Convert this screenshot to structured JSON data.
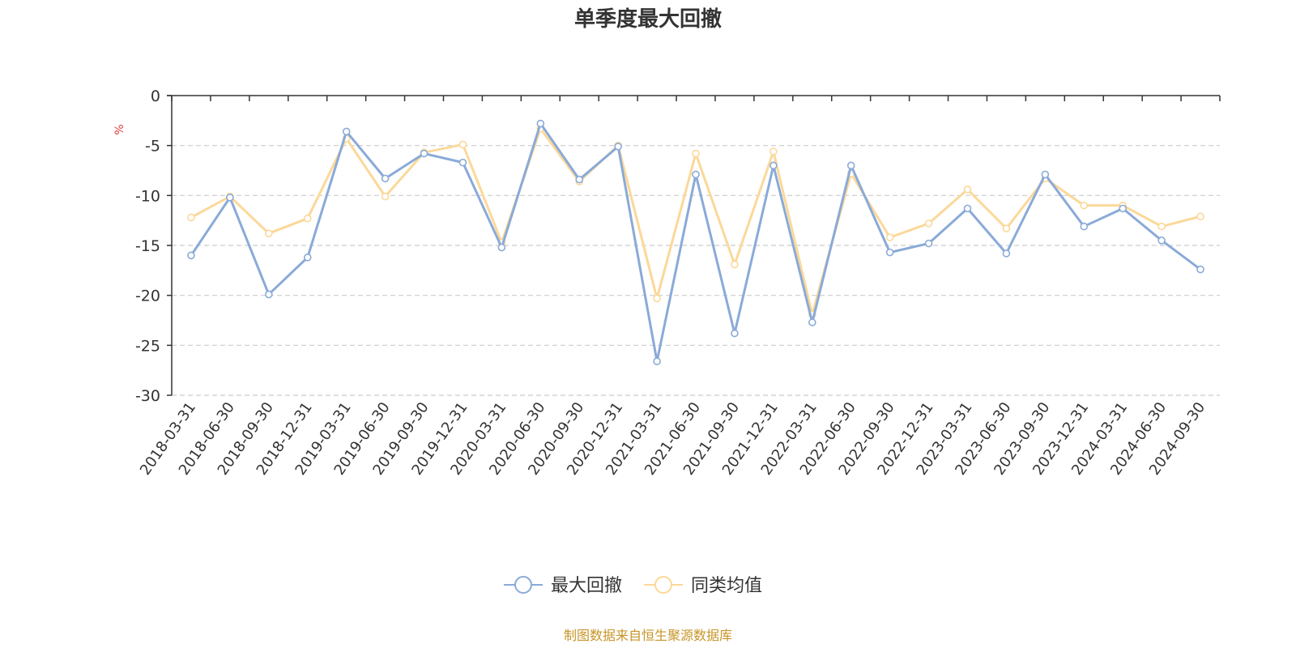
{
  "chart_data": {
    "type": "line",
    "title": "单季度最大回撤",
    "ylabel": "%",
    "xlabel": "",
    "ylim": [
      -30,
      0
    ],
    "yticks": [
      0,
      -5,
      -10,
      -15,
      -20,
      -25,
      -30
    ],
    "grid": true,
    "legend_position": "bottom-center",
    "categories": [
      "2018-03-31",
      "2018-06-30",
      "2018-09-30",
      "2018-12-31",
      "2019-03-31",
      "2019-06-30",
      "2019-09-30",
      "2019-12-31",
      "2020-03-31",
      "2020-06-30",
      "2020-09-30",
      "2020-12-31",
      "2021-03-31",
      "2021-06-30",
      "2021-09-30",
      "2021-12-31",
      "2022-03-31",
      "2022-06-30",
      "2022-09-30",
      "2022-12-31",
      "2023-03-31",
      "2023-06-30",
      "2023-09-30",
      "2023-12-31",
      "2024-03-31",
      "2024-06-30",
      "2024-09-30"
    ],
    "series": [
      {
        "name": "最大回撤",
        "color": "#8aaad8",
        "values": [
          -16.0,
          -10.2,
          -19.9,
          -16.2,
          -3.6,
          -8.3,
          -5.8,
          -6.7,
          -15.2,
          -2.8,
          -8.4,
          -5.1,
          -26.6,
          -7.9,
          -23.8,
          -7.0,
          -22.7,
          -7.0,
          -15.7,
          -14.8,
          -11.3,
          -15.8,
          -7.9,
          -13.1,
          -11.3,
          -14.5,
          -17.4
        ]
      },
      {
        "name": "同类均值",
        "color": "#fbd899",
        "values": [
          -12.2,
          -10.1,
          -13.8,
          -12.3,
          -4.3,
          -10.1,
          -5.7,
          -4.9,
          -14.7,
          -3.3,
          -8.6,
          -5.0,
          -20.3,
          -5.8,
          -16.9,
          -5.6,
          -21.9,
          -7.8,
          -14.2,
          -12.8,
          -9.4,
          -13.3,
          -8.3,
          -11.0,
          -11.0,
          -13.1,
          -12.1
        ]
      }
    ],
    "source_note": "制图数据来自恒生聚源数据库"
  }
}
